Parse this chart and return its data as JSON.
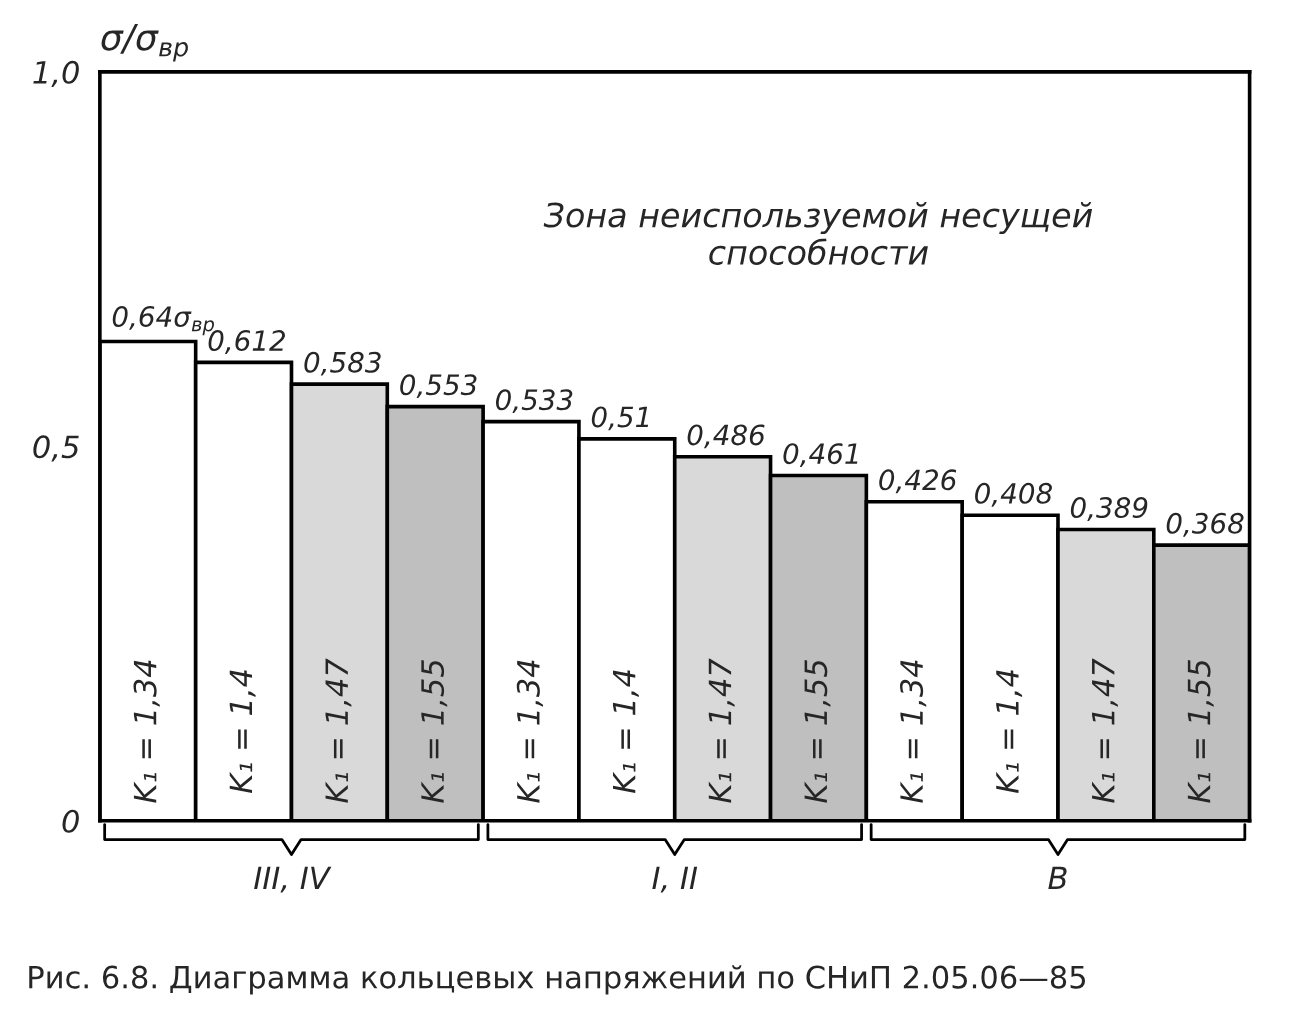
{
  "chart_data": {
    "type": "bar",
    "ylabel": "σ/σ$_{вр}$",
    "categories": [
      "K₁ = 1,34",
      "K₁ = 1,4",
      "K₁ = 1,47",
      "K₁ = 1,55",
      "K₁ = 1,34",
      "K₁ = 1,4",
      "K₁ = 1,47",
      "K₁ = 1,55",
      "K₁ = 1,34",
      "K₁ = 1,4",
      "K₁ = 1,47",
      "K₁ = 1,55"
    ],
    "values": [
      0.64,
      0.612,
      0.583,
      0.553,
      0.533,
      0.51,
      0.486,
      0.461,
      0.426,
      0.408,
      0.389,
      0.368
    ],
    "value_labels": [
      "0,64σ$_{вр}$",
      "0,612",
      "0,583",
      "0,553",
      "0,533",
      "0,51",
      "0,486",
      "0,461",
      "0,426",
      "0,408",
      "0,389",
      "0,368"
    ],
    "colors": [
      "#ffffff",
      "#ffffff",
      "#d9d9d9",
      "#bfbfbf",
      "#ffffff",
      "#ffffff",
      "#d9d9d9",
      "#bfbfbf",
      "#ffffff",
      "#ffffff",
      "#d9d9d9",
      "#bfbfbf"
    ],
    "ylim": [
      0,
      1.0
    ],
    "yticks": [
      {
        "value": 0,
        "label": "0"
      },
      {
        "value": 0.5,
        "label": "0,5"
      },
      {
        "value": 1.0,
        "label": "1,0"
      }
    ],
    "annotations": [
      "Зона неиспользуемой несущей\nспособности",
      "Рис. 6.8. Диаграмма кольцевых напряжений по СНиП 2.05.06—85",
      "III, IV",
      "I, II",
      "В"
    ],
    "grid": false,
    "legend": false
  }
}
